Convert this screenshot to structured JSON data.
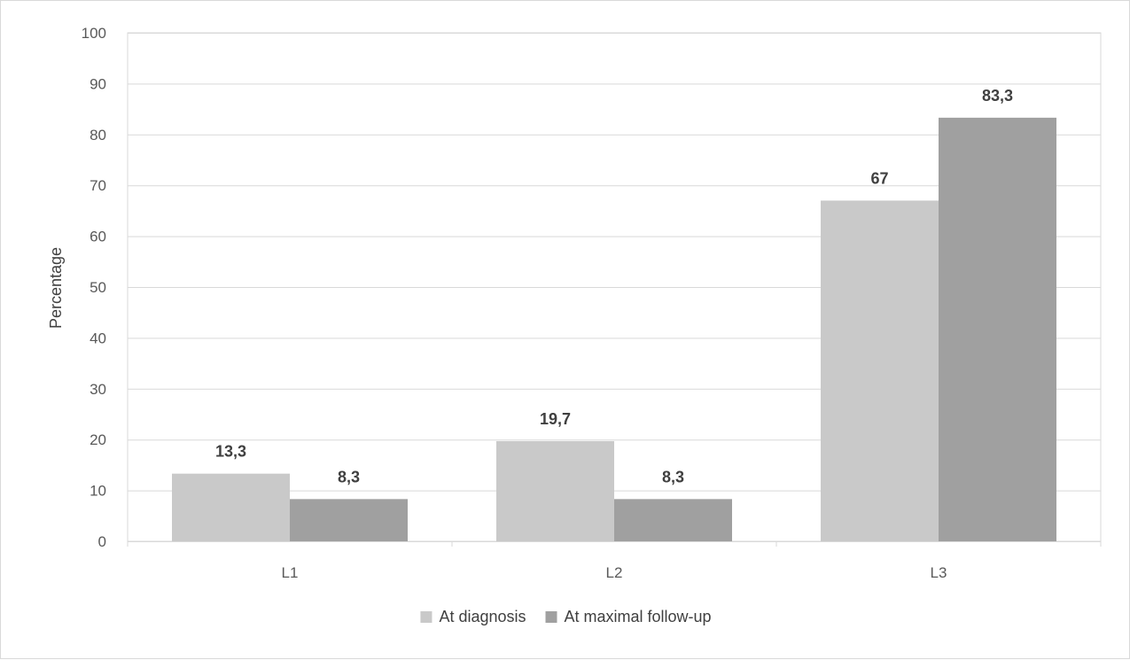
{
  "chart_data": {
    "type": "bar",
    "title": "",
    "xlabel": "",
    "ylabel": "Percentage",
    "ylim": [
      0,
      100
    ],
    "yticks": [
      0,
      10,
      20,
      30,
      40,
      50,
      60,
      70,
      80,
      90,
      100
    ],
    "categories": [
      "L1",
      "L2",
      "L3"
    ],
    "series": [
      {
        "name": "At diagnosis",
        "values": [
          13.3,
          19.7,
          67
        ],
        "labels": [
          "13,3",
          "19,7",
          "67"
        ],
        "color": "#c9c9c9"
      },
      {
        "name": "At maximal follow-up",
        "values": [
          8.3,
          8.3,
          83.3
        ],
        "labels": [
          "8,3",
          "8,3",
          "83,3"
        ],
        "color": "#a0a0a0"
      }
    ],
    "grid": true,
    "legend": "bottom"
  }
}
